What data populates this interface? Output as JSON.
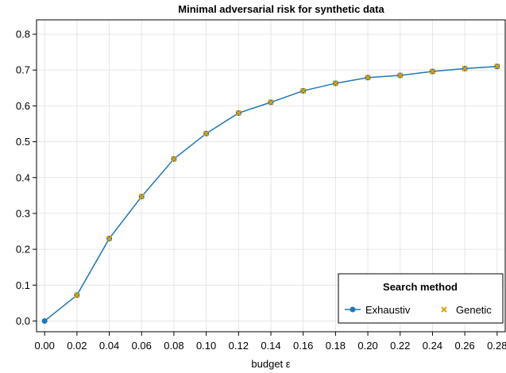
{
  "chart_data": {
    "type": "line",
    "title": "Minimal adversarial risk for synthetic data",
    "xlabel": "budget ε",
    "ylabel": "",
    "xlim": [
      -0.005,
      0.285
    ],
    "ylim": [
      -0.03,
      0.84
    ],
    "x_ticks": [
      "0.00",
      "0.02",
      "0.04",
      "0.06",
      "0.08",
      "0.10",
      "0.12",
      "0.14",
      "0.16",
      "0.18",
      "0.20",
      "0.22",
      "0.24",
      "0.26",
      "0.28"
    ],
    "y_ticks": [
      "0.0",
      "0.1",
      "0.2",
      "0.3",
      "0.4",
      "0.5",
      "0.6",
      "0.7",
      "0.8"
    ],
    "grid": true,
    "legend": {
      "title": "Search method",
      "position": "bottom-right"
    },
    "x": [
      0.0,
      0.02,
      0.04,
      0.06,
      0.08,
      0.1,
      0.12,
      0.14,
      0.16,
      0.18,
      0.2,
      0.22,
      0.24,
      0.26,
      0.28
    ],
    "series": [
      {
        "name": "Exhaustiv",
        "marker": "circle-line",
        "color": "#1f77b4",
        "values": [
          0.0,
          0.072,
          0.23,
          0.347,
          0.452,
          0.523,
          0.58,
          0.61,
          0.642,
          0.663,
          0.679,
          0.685,
          0.696,
          0.704,
          0.71
        ]
      },
      {
        "name": "Genetic",
        "marker": "x",
        "color": "#e69f00",
        "values": [
          null,
          0.072,
          0.23,
          0.347,
          0.452,
          0.523,
          0.58,
          0.61,
          0.642,
          0.663,
          0.679,
          0.685,
          0.696,
          0.704,
          0.71
        ]
      }
    ]
  }
}
